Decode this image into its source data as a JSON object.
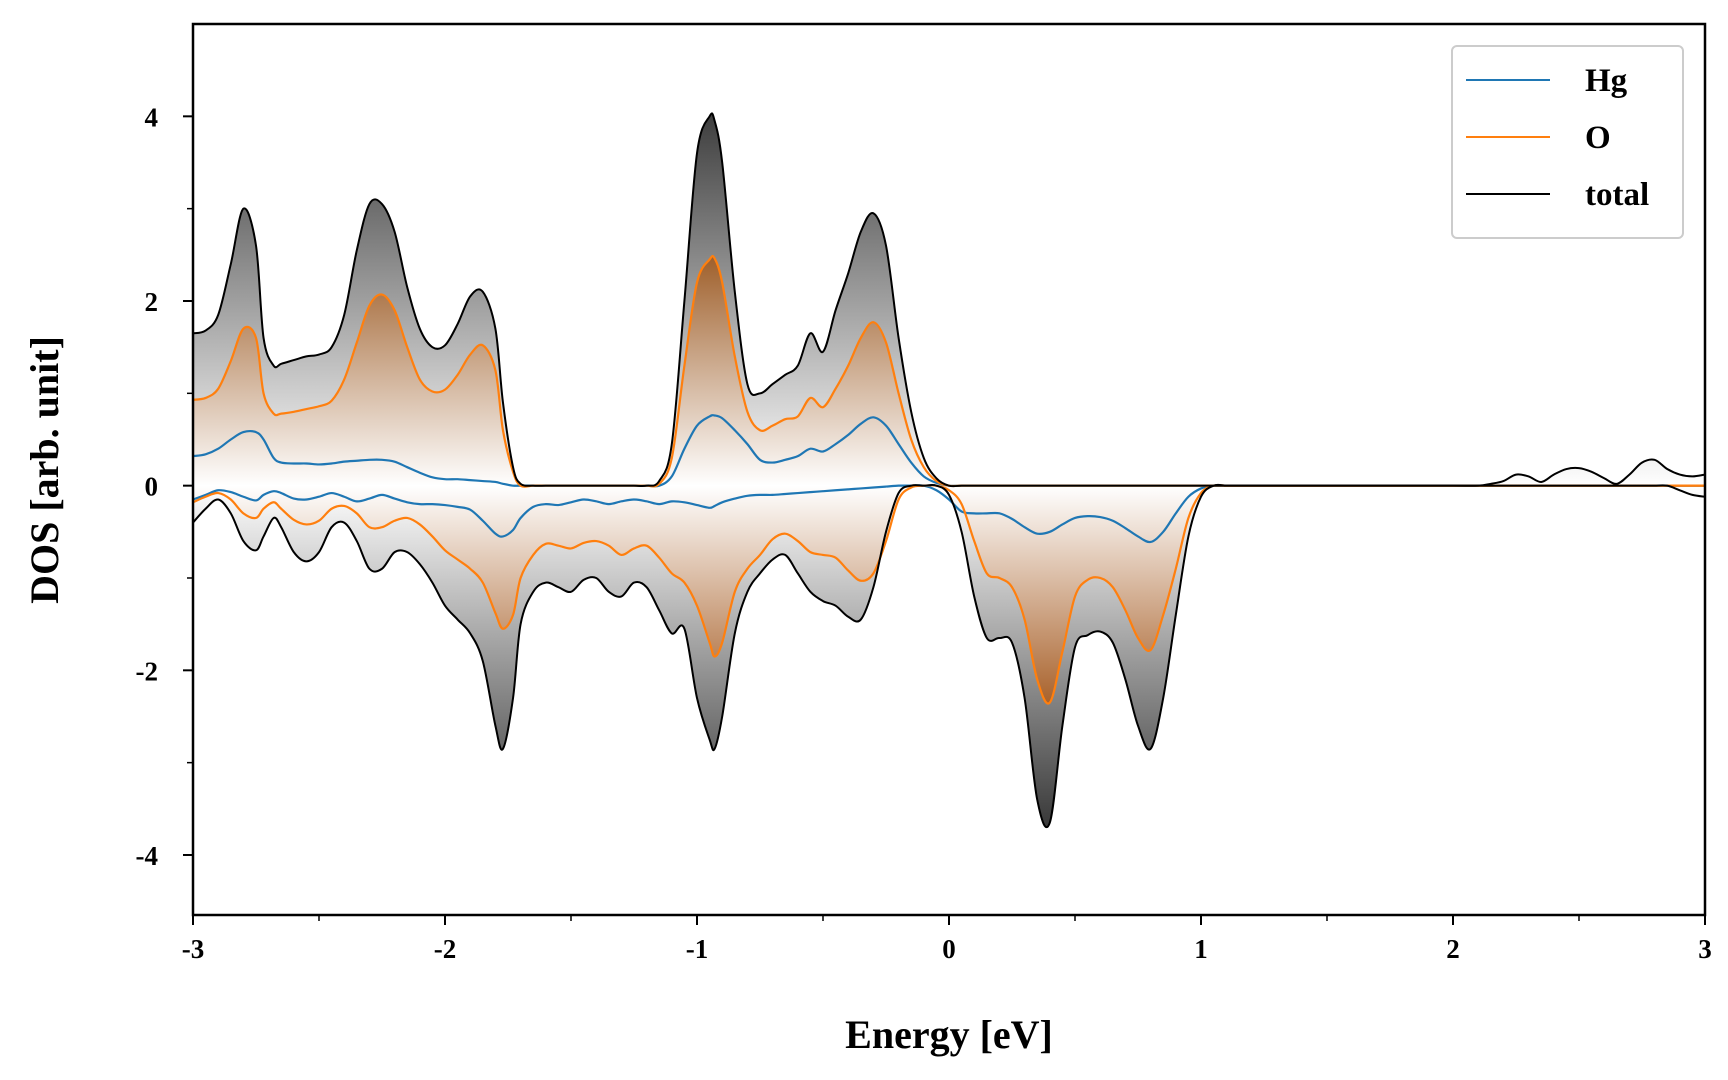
{
  "chart_data": {
    "type": "line",
    "title": "",
    "xlabel": "Energy [eV]",
    "ylabel": "DOS [arb. unit]",
    "xlim": [
      -3,
      3
    ],
    "ylim": [
      -4.65,
      5.0
    ],
    "xticks": [
      -3,
      -2,
      -1,
      0,
      1,
      2,
      3
    ],
    "xtick_labels": [
      "-3",
      "-2",
      "-1",
      "0",
      "1",
      "2",
      "3"
    ],
    "yticks": [
      -4,
      -2,
      0,
      2,
      4
    ],
    "ytick_labels": [
      "-4",
      "-2",
      "0",
      "2",
      "4"
    ],
    "grid": false,
    "legend_position": "top-right",
    "x": [
      -3.0,
      -2.95,
      -2.9,
      -2.85,
      -2.8,
      -2.75,
      -2.72,
      -2.68,
      -2.65,
      -2.6,
      -2.55,
      -2.5,
      -2.45,
      -2.4,
      -2.35,
      -2.3,
      -2.25,
      -2.2,
      -2.15,
      -2.1,
      -2.05,
      -2.0,
      -1.95,
      -1.9,
      -1.85,
      -1.8,
      -1.77,
      -1.73,
      -1.7,
      -1.65,
      -1.6,
      -1.55,
      -1.5,
      -1.45,
      -1.4,
      -1.35,
      -1.3,
      -1.25,
      -1.2,
      -1.15,
      -1.1,
      -1.05,
      -1.0,
      -0.95,
      -0.93,
      -0.9,
      -0.85,
      -0.8,
      -0.75,
      -0.7,
      -0.65,
      -0.6,
      -0.55,
      -0.5,
      -0.45,
      -0.4,
      -0.35,
      -0.3,
      -0.25,
      -0.2,
      -0.15,
      -0.1,
      -0.05,
      0.0,
      0.05,
      0.1,
      0.15,
      0.2,
      0.25,
      0.3,
      0.35,
      0.4,
      0.45,
      0.5,
      0.55,
      0.6,
      0.65,
      0.7,
      0.75,
      0.8,
      0.85,
      0.9,
      0.95,
      1.0,
      1.05,
      1.1,
      1.15,
      1.2,
      1.3,
      1.5,
      1.8,
      2.0,
      2.1,
      2.15,
      2.2,
      2.25,
      2.3,
      2.35,
      2.4,
      2.45,
      2.5,
      2.55,
      2.6,
      2.65,
      2.7,
      2.75,
      2.8,
      2.85,
      2.9,
      2.95,
      3.0
    ],
    "series": [
      {
        "name": "Hg",
        "color": "#1f77b4",
        "up": [
          0.32,
          0.34,
          0.4,
          0.5,
          0.58,
          0.58,
          0.5,
          0.3,
          0.25,
          0.24,
          0.24,
          0.23,
          0.24,
          0.26,
          0.27,
          0.28,
          0.28,
          0.26,
          0.2,
          0.14,
          0.09,
          0.07,
          0.07,
          0.06,
          0.05,
          0.04,
          0.02,
          0.0,
          0.0,
          0.0,
          0.0,
          0.0,
          0.0,
          0.0,
          0.0,
          0.0,
          0.0,
          0.0,
          0.0,
          0.0,
          0.1,
          0.4,
          0.65,
          0.75,
          0.76,
          0.73,
          0.6,
          0.45,
          0.28,
          0.25,
          0.28,
          0.32,
          0.4,
          0.37,
          0.45,
          0.55,
          0.67,
          0.74,
          0.65,
          0.45,
          0.25,
          0.1,
          0.03,
          0.0,
          0.0,
          0.0,
          0.0,
          0.0,
          0.0,
          0.0,
          0.0,
          0.0,
          0.0,
          0.0,
          0.0,
          0.0,
          0.0,
          0.0,
          0.0,
          0.0,
          0.0,
          0.0,
          0.0,
          0.0,
          0.0,
          0.0,
          0.0,
          0.0,
          0.0,
          0.0,
          0.0,
          0.0,
          0.0,
          0.0,
          0.0,
          0.0,
          0.0,
          0.0,
          0.0,
          0.0,
          0.0,
          0.0,
          0.0,
          0.0,
          0.0,
          0.0,
          0.0,
          0.0,
          0.0,
          0.0,
          0.0
        ],
        "down": [
          -0.15,
          -0.1,
          -0.05,
          -0.07,
          -0.12,
          -0.16,
          -0.1,
          -0.06,
          -0.08,
          -0.14,
          -0.15,
          -0.12,
          -0.08,
          -0.12,
          -0.17,
          -0.14,
          -0.1,
          -0.14,
          -0.18,
          -0.2,
          -0.2,
          -0.21,
          -0.23,
          -0.26,
          -0.38,
          -0.52,
          -0.55,
          -0.48,
          -0.35,
          -0.23,
          -0.2,
          -0.21,
          -0.18,
          -0.15,
          -0.17,
          -0.2,
          -0.17,
          -0.15,
          -0.17,
          -0.2,
          -0.17,
          -0.18,
          -0.21,
          -0.24,
          -0.22,
          -0.18,
          -0.14,
          -0.11,
          -0.1,
          -0.1,
          -0.09,
          -0.08,
          -0.07,
          -0.06,
          -0.05,
          -0.04,
          -0.03,
          -0.02,
          -0.01,
          0.0,
          0.0,
          0.0,
          -0.05,
          -0.15,
          -0.28,
          -0.3,
          -0.3,
          -0.3,
          -0.36,
          -0.45,
          -0.52,
          -0.5,
          -0.42,
          -0.35,
          -0.33,
          -0.34,
          -0.38,
          -0.46,
          -0.55,
          -0.61,
          -0.5,
          -0.3,
          -0.12,
          -0.03,
          0.0,
          0.0,
          0.0,
          0.0,
          0.0,
          0.0,
          0.0,
          0.0,
          0.0,
          0.0,
          0.0,
          0.0,
          0.0,
          0.0,
          0.0,
          0.0,
          0.0,
          0.0,
          0.0,
          0.0,
          0.0,
          0.0,
          0.0,
          0.0,
          0.0,
          0.0,
          0.0
        ]
      },
      {
        "name": "O",
        "color": "#ff7f0e",
        "up": [
          0.93,
          0.95,
          1.05,
          1.35,
          1.7,
          1.6,
          1.0,
          0.78,
          0.78,
          0.8,
          0.83,
          0.86,
          0.92,
          1.15,
          1.55,
          1.95,
          2.07,
          1.9,
          1.5,
          1.15,
          1.02,
          1.04,
          1.2,
          1.42,
          1.52,
          1.25,
          0.6,
          0.15,
          0.0,
          0.0,
          0.0,
          0.0,
          0.0,
          0.0,
          0.0,
          0.0,
          0.0,
          0.0,
          0.0,
          0.02,
          0.3,
          1.3,
          2.2,
          2.45,
          2.46,
          2.2,
          1.4,
          0.8,
          0.6,
          0.65,
          0.72,
          0.75,
          0.95,
          0.85,
          1.05,
          1.3,
          1.6,
          1.77,
          1.55,
          1.0,
          0.5,
          0.2,
          0.05,
          0.0,
          0.0,
          0.0,
          0.0,
          0.0,
          0.0,
          0.0,
          0.0,
          0.0,
          0.0,
          0.0,
          0.0,
          0.0,
          0.0,
          0.0,
          0.0,
          0.0,
          0.0,
          0.0,
          0.0,
          0.0,
          0.0,
          0.0,
          0.0,
          0.0,
          0.0,
          0.0,
          0.0,
          0.0,
          0.0,
          0.0,
          0.0,
          0.0,
          0.0,
          0.0,
          0.0,
          0.0,
          0.0,
          0.0,
          0.0,
          0.0,
          0.0,
          0.0,
          0.0,
          0.0,
          0.0,
          0.0,
          0.0
        ],
        "down": [
          -0.18,
          -0.12,
          -0.08,
          -0.15,
          -0.3,
          -0.35,
          -0.25,
          -0.18,
          -0.25,
          -0.37,
          -0.42,
          -0.38,
          -0.25,
          -0.22,
          -0.3,
          -0.45,
          -0.45,
          -0.38,
          -0.35,
          -0.42,
          -0.55,
          -0.7,
          -0.8,
          -0.9,
          -1.05,
          -1.38,
          -1.55,
          -1.4,
          -1.0,
          -0.75,
          -0.63,
          -0.65,
          -0.68,
          -0.62,
          -0.6,
          -0.65,
          -0.75,
          -0.68,
          -0.65,
          -0.78,
          -0.95,
          -1.05,
          -1.3,
          -1.7,
          -1.85,
          -1.7,
          -1.15,
          -0.9,
          -0.75,
          -0.58,
          -0.52,
          -0.6,
          -0.72,
          -0.75,
          -0.78,
          -0.92,
          -1.03,
          -0.95,
          -0.6,
          -0.15,
          -0.02,
          0.0,
          0.0,
          -0.05,
          -0.2,
          -0.6,
          -0.95,
          -1.0,
          -1.1,
          -1.45,
          -2.1,
          -2.35,
          -1.8,
          -1.2,
          -1.02,
          -1.0,
          -1.1,
          -1.35,
          -1.65,
          -1.78,
          -1.4,
          -0.9,
          -0.35,
          -0.08,
          0.0,
          0.0,
          0.0,
          0.0,
          0.0,
          0.0,
          0.0,
          0.0,
          0.0,
          0.0,
          0.0,
          0.0,
          0.0,
          0.0,
          0.0,
          0.0,
          0.0,
          0.0,
          0.0,
          0.0,
          0.0,
          0.0,
          0.0,
          0.0,
          0.0,
          0.0,
          0.0
        ]
      },
      {
        "name": "total",
        "color": "#000000",
        "up": [
          1.65,
          1.68,
          1.85,
          2.4,
          3.0,
          2.6,
          1.6,
          1.3,
          1.32,
          1.36,
          1.4,
          1.42,
          1.5,
          1.85,
          2.55,
          3.05,
          3.05,
          2.75,
          2.15,
          1.7,
          1.5,
          1.52,
          1.75,
          2.05,
          2.1,
          1.7,
          0.9,
          0.2,
          0.02,
          0.0,
          0.0,
          0.0,
          0.0,
          0.0,
          0.0,
          0.0,
          0.0,
          0.0,
          0.0,
          0.05,
          0.45,
          2.0,
          3.6,
          4.0,
          3.95,
          3.5,
          2.1,
          1.1,
          1.0,
          1.1,
          1.2,
          1.3,
          1.65,
          1.45,
          1.9,
          2.3,
          2.75,
          2.95,
          2.6,
          1.6,
          0.8,
          0.3,
          0.08,
          0.0,
          0.0,
          0.0,
          0.0,
          0.0,
          0.0,
          0.0,
          0.0,
          0.0,
          0.0,
          0.0,
          0.0,
          0.0,
          0.0,
          0.0,
          0.0,
          0.0,
          0.0,
          0.0,
          0.0,
          0.0,
          0.0,
          0.0,
          0.0,
          0.0,
          0.0,
          0.0,
          0.0,
          0.0,
          0.0,
          0.02,
          0.05,
          0.12,
          0.1,
          0.04,
          0.12,
          0.18,
          0.19,
          0.15,
          0.08,
          0.02,
          0.12,
          0.25,
          0.28,
          0.18,
          0.12,
          0.1,
          0.12
        ],
        "down": [
          -0.4,
          -0.25,
          -0.15,
          -0.3,
          -0.6,
          -0.7,
          -0.55,
          -0.35,
          -0.45,
          -0.72,
          -0.82,
          -0.72,
          -0.45,
          -0.4,
          -0.6,
          -0.9,
          -0.9,
          -0.72,
          -0.72,
          -0.85,
          -1.05,
          -1.3,
          -1.45,
          -1.6,
          -1.9,
          -2.6,
          -2.85,
          -2.3,
          -1.5,
          -1.15,
          -1.05,
          -1.1,
          -1.15,
          -1.02,
          -1.0,
          -1.15,
          -1.2,
          -1.05,
          -1.1,
          -1.35,
          -1.6,
          -1.55,
          -2.3,
          -2.75,
          -2.85,
          -2.5,
          -1.6,
          -1.15,
          -0.95,
          -0.8,
          -0.75,
          -0.95,
          -1.15,
          -1.25,
          -1.3,
          -1.42,
          -1.45,
          -1.1,
          -0.5,
          -0.08,
          0.0,
          0.0,
          0.0,
          -0.1,
          -0.5,
          -1.2,
          -1.65,
          -1.65,
          -1.7,
          -2.3,
          -3.4,
          -3.65,
          -2.6,
          -1.75,
          -1.62,
          -1.58,
          -1.7,
          -2.1,
          -2.6,
          -2.85,
          -2.3,
          -1.4,
          -0.55,
          -0.12,
          0.0,
          0.0,
          0.0,
          0.0,
          0.0,
          0.0,
          0.0,
          0.0,
          0.0,
          0.0,
          0.0,
          0.0,
          0.0,
          0.0,
          0.0,
          0.0,
          0.0,
          0.0,
          0.0,
          0.0,
          0.0,
          0.0,
          0.0,
          0.0,
          -0.05,
          -0.1,
          -0.12
        ]
      }
    ]
  }
}
